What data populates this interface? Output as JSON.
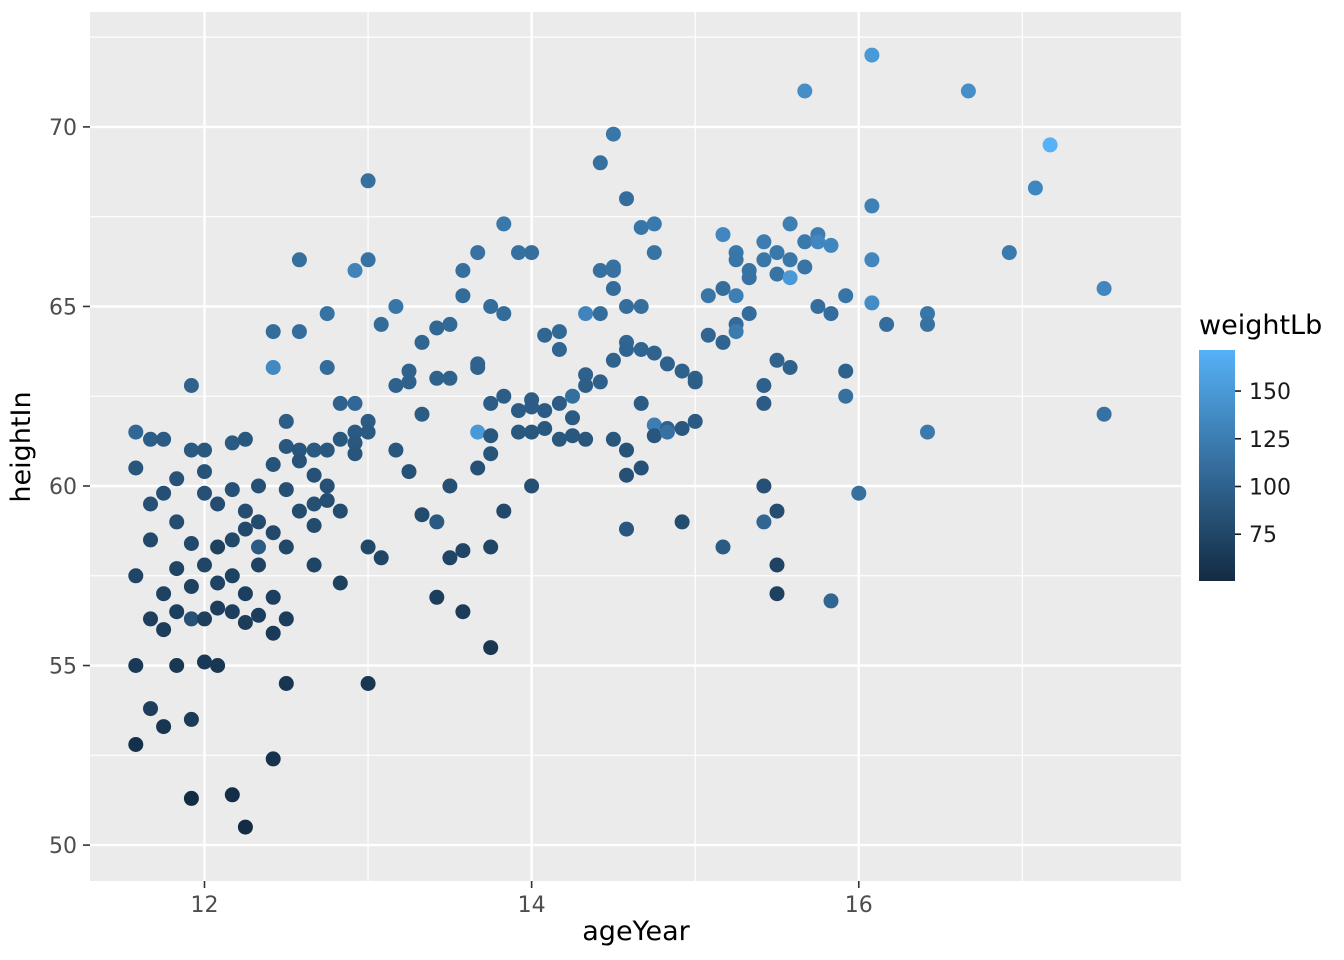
{
  "chart_data": {
    "type": "scatter",
    "title": "",
    "xlabel": "ageYear",
    "ylabel": "heightIn",
    "xlim": [
      11.3,
      17.97
    ],
    "ylim": [
      49.0,
      73.2
    ],
    "x_ticks": [
      12,
      14,
      16
    ],
    "y_ticks": [
      50,
      55,
      60,
      65,
      70
    ],
    "x_minor": [
      13,
      15,
      17
    ],
    "y_minor": [
      52.5,
      57.5,
      62.5,
      67.5,
      72.5
    ],
    "grid": true,
    "legend_position": "right",
    "panel_bg": "#EBEBEB",
    "grid_color": "#FFFFFF",
    "axis_text_color": "#4D4D4D",
    "point_radius": 7.5,
    "color_scale": {
      "label": "weightLb",
      "low": "#132B43",
      "high": "#56B1F7",
      "domain": [
        50.5,
        171.5
      ],
      "ticks": [
        150,
        125,
        100,
        75
      ]
    },
    "points": [
      [
        11.58,
        61.5,
        105
      ],
      [
        11.58,
        60.5,
        88
      ],
      [
        11.58,
        57.5,
        74
      ],
      [
        11.58,
        55.0,
        63
      ],
      [
        11.58,
        52.8,
        55
      ],
      [
        11.67,
        61.3,
        96
      ],
      [
        11.67,
        59.5,
        84
      ],
      [
        11.67,
        58.5,
        78
      ],
      [
        11.67,
        56.3,
        68
      ],
      [
        11.67,
        53.8,
        66.5
      ],
      [
        11.75,
        61.3,
        94
      ],
      [
        11.75,
        59.8,
        83
      ],
      [
        11.75,
        57.0,
        71
      ],
      [
        11.75,
        56.0,
        67
      ],
      [
        11.75,
        53.3,
        60
      ],
      [
        11.83,
        60.2,
        87
      ],
      [
        11.83,
        59.0,
        81
      ],
      [
        11.83,
        57.7,
        73
      ],
      [
        11.83,
        56.5,
        69
      ],
      [
        11.83,
        55.0,
        62
      ],
      [
        11.92,
        62.8,
        101
      ],
      [
        11.92,
        61.0,
        92
      ],
      [
        11.92,
        58.4,
        78
      ],
      [
        11.92,
        56.3,
        85
      ],
      [
        11.92,
        53.5,
        64.5
      ],
      [
        11.92,
        51.3,
        50.5
      ],
      [
        11.92,
        57.2,
        70
      ],
      [
        12.0,
        61.0,
        91
      ],
      [
        12.0,
        60.4,
        87
      ],
      [
        12.0,
        59.8,
        84
      ],
      [
        12.0,
        57.8,
        74
      ],
      [
        12.0,
        56.3,
        68
      ],
      [
        12.0,
        55.1,
        63
      ],
      [
        12.08,
        59.5,
        80.5
      ],
      [
        12.08,
        58.3,
        70
      ],
      [
        12.08,
        57.3,
        72
      ],
      [
        12.08,
        56.6,
        67
      ],
      [
        12.08,
        55.0,
        61
      ],
      [
        12.17,
        61.2,
        93
      ],
      [
        12.17,
        59.9,
        84
      ],
      [
        12.17,
        58.5,
        77
      ],
      [
        12.17,
        57.5,
        71
      ],
      [
        12.17,
        56.5,
        69
      ],
      [
        12.17,
        51.4,
        53
      ],
      [
        12.25,
        61.3,
        91
      ],
      [
        12.25,
        59.3,
        81.5
      ],
      [
        12.25,
        58.8,
        78
      ],
      [
        12.25,
        57.0,
        69
      ],
      [
        12.25,
        56.2,
        66
      ],
      [
        12.25,
        50.5,
        50.5
      ],
      [
        12.33,
        60.0,
        84
      ],
      [
        12.33,
        59.0,
        79
      ],
      [
        12.33,
        58.3,
        93
      ],
      [
        12.33,
        57.8,
        71.5
      ],
      [
        12.33,
        56.4,
        67
      ],
      [
        12.42,
        64.3,
        110
      ],
      [
        12.42,
        63.3,
        135
      ],
      [
        12.42,
        60.6,
        87
      ],
      [
        12.42,
        58.7,
        77
      ],
      [
        12.42,
        56.9,
        69
      ],
      [
        12.42,
        55.9,
        64
      ],
      [
        12.42,
        52.4,
        57
      ],
      [
        12.5,
        61.8,
        96
      ],
      [
        12.5,
        61.1,
        90
      ],
      [
        12.5,
        59.9,
        83
      ],
      [
        12.5,
        58.3,
        76
      ],
      [
        12.5,
        56.3,
        67
      ],
      [
        12.5,
        54.5,
        60
      ],
      [
        12.58,
        66.3,
        112
      ],
      [
        12.58,
        64.3,
        110.5
      ],
      [
        12.58,
        61.0,
        89
      ],
      [
        12.58,
        60.7,
        87
      ],
      [
        12.58,
        59.3,
        80
      ],
      [
        12.67,
        61.0,
        92
      ],
      [
        12.67,
        60.3,
        84
      ],
      [
        12.67,
        59.5,
        83
      ],
      [
        12.67,
        58.9,
        79
      ],
      [
        12.67,
        57.8,
        73
      ],
      [
        12.75,
        64.8,
        115
      ],
      [
        12.75,
        63.3,
        108
      ],
      [
        12.75,
        61.0,
        90
      ],
      [
        12.75,
        60.0,
        84
      ],
      [
        12.75,
        59.6,
        82
      ],
      [
        12.83,
        62.3,
        99
      ],
      [
        12.83,
        61.3,
        91
      ],
      [
        12.83,
        59.3,
        80
      ],
      [
        12.83,
        57.3,
        70
      ],
      [
        12.92,
        66.0,
        130
      ],
      [
        12.92,
        62.3,
        105
      ],
      [
        12.92,
        61.5,
        92
      ],
      [
        12.92,
        61.2,
        90
      ],
      [
        12.92,
        60.9,
        88
      ],
      [
        13.0,
        68.5,
        112.5
      ],
      [
        13.0,
        66.3,
        115
      ],
      [
        13.0,
        61.8,
        95
      ],
      [
        13.0,
        61.5,
        92
      ],
      [
        13.0,
        58.3,
        76
      ],
      [
        13.0,
        54.5,
        61
      ],
      [
        13.08,
        64.5,
        108
      ],
      [
        13.08,
        58.0,
        74
      ],
      [
        13.17,
        65.0,
        118
      ],
      [
        13.17,
        62.8,
        100
      ],
      [
        13.17,
        61.0,
        89
      ],
      [
        13.25,
        63.2,
        101
      ],
      [
        13.25,
        62.9,
        99
      ],
      [
        13.25,
        60.4,
        85
      ],
      [
        13.33,
        64.0,
        104
      ],
      [
        13.33,
        62.0,
        94.5
      ],
      [
        13.33,
        59.2,
        79
      ],
      [
        13.42,
        64.4,
        105
      ],
      [
        13.42,
        63.0,
        99
      ],
      [
        13.42,
        59.0,
        92
      ],
      [
        13.42,
        56.9,
        67
      ],
      [
        13.5,
        64.5,
        107
      ],
      [
        13.5,
        63.0,
        100
      ],
      [
        13.5,
        60.0,
        83
      ],
      [
        13.5,
        58.0,
        73
      ],
      [
        13.58,
        66.0,
        112
      ],
      [
        13.58,
        65.3,
        108
      ],
      [
        13.58,
        58.2,
        74
      ],
      [
        13.58,
        56.5,
        65
      ],
      [
        13.67,
        66.5,
        115
      ],
      [
        13.67,
        63.4,
        102
      ],
      [
        13.67,
        63.3,
        101
      ],
      [
        13.67,
        61.5,
        150
      ],
      [
        13.67,
        60.5,
        85
      ],
      [
        13.75,
        65.0,
        110
      ],
      [
        13.75,
        62.3,
        96
      ],
      [
        13.75,
        61.4,
        91
      ],
      [
        13.75,
        60.9,
        88
      ],
      [
        13.75,
        58.3,
        74
      ],
      [
        13.75,
        55.5,
        61
      ],
      [
        13.83,
        67.3,
        120
      ],
      [
        13.83,
        64.8,
        108
      ],
      [
        13.83,
        62.5,
        96
      ],
      [
        13.83,
        59.3,
        78
      ],
      [
        13.92,
        66.5,
        113
      ],
      [
        13.92,
        62.1,
        94
      ],
      [
        13.92,
        61.5,
        91
      ],
      [
        14.0,
        66.5,
        112
      ],
      [
        14.0,
        62.4,
        96
      ],
      [
        14.0,
        62.2,
        95
      ],
      [
        14.0,
        61.5,
        91
      ],
      [
        14.0,
        60.0,
        83
      ],
      [
        14.08,
        64.2,
        104
      ],
      [
        14.08,
        62.1,
        94
      ],
      [
        14.08,
        61.6,
        91
      ],
      [
        14.17,
        64.3,
        106
      ],
      [
        14.17,
        63.8,
        103
      ],
      [
        14.17,
        62.3,
        95
      ],
      [
        14.17,
        61.3,
        91
      ],
      [
        14.25,
        62.5,
        112
      ],
      [
        14.25,
        61.9,
        93
      ],
      [
        14.25,
        61.4,
        90
      ],
      [
        14.33,
        64.8,
        131
      ],
      [
        14.33,
        63.1,
        99
      ],
      [
        14.33,
        62.8,
        97
      ],
      [
        14.33,
        61.3,
        89
      ],
      [
        14.42,
        69.0,
        112.5
      ],
      [
        14.42,
        66.0,
        113
      ],
      [
        14.42,
        64.8,
        110
      ],
      [
        14.42,
        62.9,
        98
      ],
      [
        14.5,
        69.8,
        119
      ],
      [
        14.5,
        66.1,
        115
      ],
      [
        14.5,
        66.0,
        114
      ],
      [
        14.5,
        65.5,
        110
      ],
      [
        14.5,
        63.5,
        101
      ],
      [
        14.5,
        61.3,
        89
      ],
      [
        14.58,
        68.0,
        110
      ],
      [
        14.58,
        65.0,
        111
      ],
      [
        14.58,
        64.0,
        104
      ],
      [
        14.58,
        63.8,
        102
      ],
      [
        14.58,
        61.0,
        87
      ],
      [
        14.58,
        60.3,
        84
      ],
      [
        14.58,
        58.8,
        89
      ],
      [
        14.67,
        67.2,
        118
      ],
      [
        14.67,
        65.0,
        112
      ],
      [
        14.67,
        63.8,
        103
      ],
      [
        14.67,
        62.3,
        95
      ],
      [
        14.67,
        60.5,
        85
      ],
      [
        14.75,
        67.3,
        121
      ],
      [
        14.75,
        66.5,
        116
      ],
      [
        14.75,
        63.7,
        101
      ],
      [
        14.75,
        61.7,
        125
      ],
      [
        14.75,
        61.4,
        89
      ],
      [
        14.83,
        63.4,
        100
      ],
      [
        14.83,
        61.6,
        99
      ],
      [
        14.83,
        61.5,
        114
      ],
      [
        14.92,
        63.2,
        99
      ],
      [
        14.92,
        61.6,
        91
      ],
      [
        14.92,
        59.0,
        80
      ],
      [
        15.0,
        63.0,
        98
      ],
      [
        15.0,
        62.9,
        97
      ],
      [
        15.0,
        61.8,
        93
      ],
      [
        15.08,
        65.3,
        118
      ],
      [
        15.08,
        64.2,
        104
      ],
      [
        15.17,
        67.0,
        133
      ],
      [
        15.17,
        65.5,
        111
      ],
      [
        15.17,
        64.0,
        103
      ],
      [
        15.17,
        58.3,
        93
      ],
      [
        15.25,
        66.5,
        120
      ],
      [
        15.25,
        66.3,
        118
      ],
      [
        15.25,
        65.3,
        126.5
      ],
      [
        15.25,
        64.5,
        109
      ],
      [
        15.25,
        64.3,
        123.5
      ],
      [
        15.33,
        66.0,
        116
      ],
      [
        15.33,
        65.8,
        115
      ],
      [
        15.33,
        64.8,
        110
      ],
      [
        15.42,
        66.8,
        124
      ],
      [
        15.42,
        66.3,
        119
      ],
      [
        15.42,
        62.8,
        98
      ],
      [
        15.42,
        62.3,
        95
      ],
      [
        15.42,
        60.0,
        84
      ],
      [
        15.42,
        59.0,
        104
      ],
      [
        15.5,
        66.5,
        120
      ],
      [
        15.5,
        65.9,
        116
      ],
      [
        15.5,
        63.5,
        101
      ],
      [
        15.5,
        59.3,
        81
      ],
      [
        15.5,
        57.8,
        72
      ],
      [
        15.5,
        57.0,
        70
      ],
      [
        15.58,
        67.3,
        126
      ],
      [
        15.58,
        66.3,
        119
      ],
      [
        15.58,
        65.8,
        150
      ],
      [
        15.58,
        63.3,
        99
      ],
      [
        15.67,
        71.0,
        140
      ],
      [
        15.67,
        66.8,
        121
      ],
      [
        15.67,
        66.1,
        117
      ],
      [
        15.75,
        67.0,
        124
      ],
      [
        15.75,
        66.8,
        133
      ],
      [
        15.75,
        65.0,
        111
      ],
      [
        15.83,
        66.7,
        134
      ],
      [
        15.83,
        64.8,
        110
      ],
      [
        15.83,
        56.8,
        104
      ],
      [
        15.92,
        65.3,
        117
      ],
      [
        15.92,
        63.2,
        100
      ],
      [
        15.92,
        62.5,
        112.5
      ],
      [
        16.0,
        59.8,
        112.5
      ],
      [
        16.08,
        72.0,
        150
      ],
      [
        16.08,
        67.8,
        128
      ],
      [
        16.08,
        66.3,
        133
      ],
      [
        16.08,
        65.1,
        138
      ],
      [
        16.17,
        64.5,
        110
      ],
      [
        16.42,
        64.8,
        118
      ],
      [
        16.42,
        64.5,
        115
      ],
      [
        16.42,
        61.5,
        122
      ],
      [
        16.67,
        71.0,
        140
      ],
      [
        16.92,
        66.5,
        122
      ],
      [
        17.08,
        68.3,
        134
      ],
      [
        17.17,
        69.5,
        171.5
      ],
      [
        17.5,
        65.5,
        133
      ],
      [
        17.5,
        62.0,
        114
      ]
    ]
  }
}
